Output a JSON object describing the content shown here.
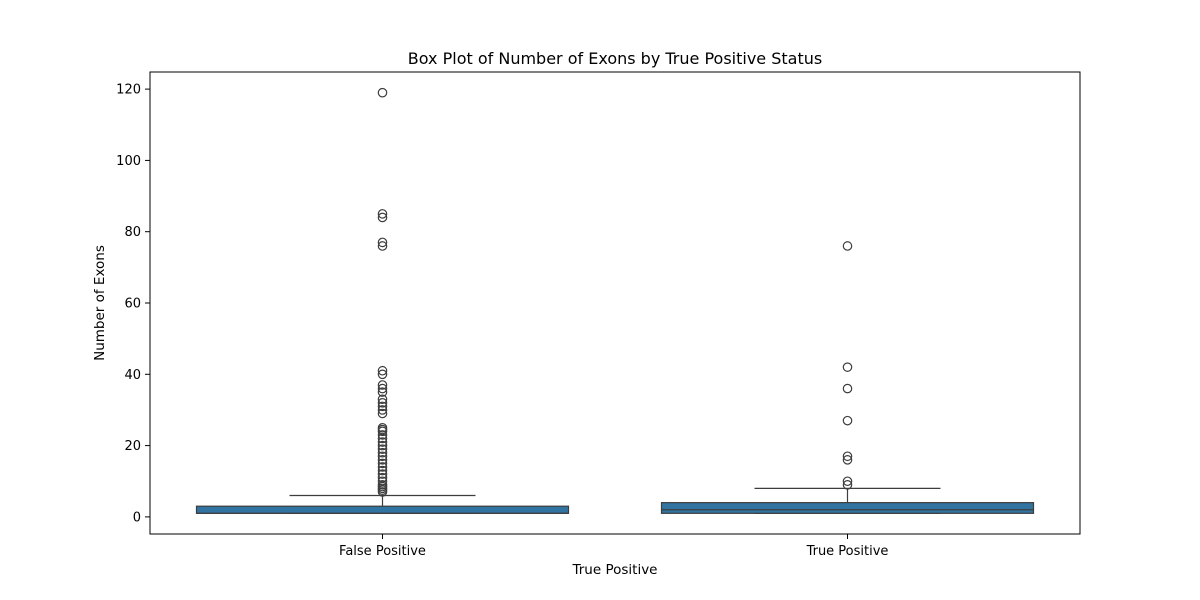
{
  "chart_data": {
    "type": "box",
    "title": "Box Plot of Number of Exons by True Positive Status",
    "xlabel": "True Positive",
    "ylabel": "Number of Exons",
    "ylim": [
      -4.8,
      124.8
    ],
    "yticks": [
      0,
      20,
      40,
      60,
      80,
      100,
      120
    ],
    "categories": [
      "False Positive",
      "True Positive"
    ],
    "box_color": "#3274a1",
    "line_color": "#3d3d3d",
    "grid": false,
    "boxes": [
      {
        "category": "False Positive",
        "whisker_low": 1,
        "q1": 1,
        "median": 1,
        "q3": 3,
        "whisker_high": 6,
        "outliers": [
          7,
          7.5,
          8,
          8.5,
          9,
          10,
          11,
          12,
          13,
          14,
          15,
          16,
          17,
          18,
          19,
          20,
          21,
          22,
          23,
          24,
          24.5,
          25,
          29,
          30,
          31,
          32,
          33,
          35,
          36,
          37,
          40,
          41,
          76,
          77,
          84,
          85,
          119
        ]
      },
      {
        "category": "True Positive",
        "whisker_low": 1,
        "q1": 1,
        "median": 2,
        "q3": 4,
        "whisker_high": 8,
        "outliers": [
          9,
          10,
          16,
          17,
          27,
          36,
          42,
          76
        ]
      }
    ]
  }
}
